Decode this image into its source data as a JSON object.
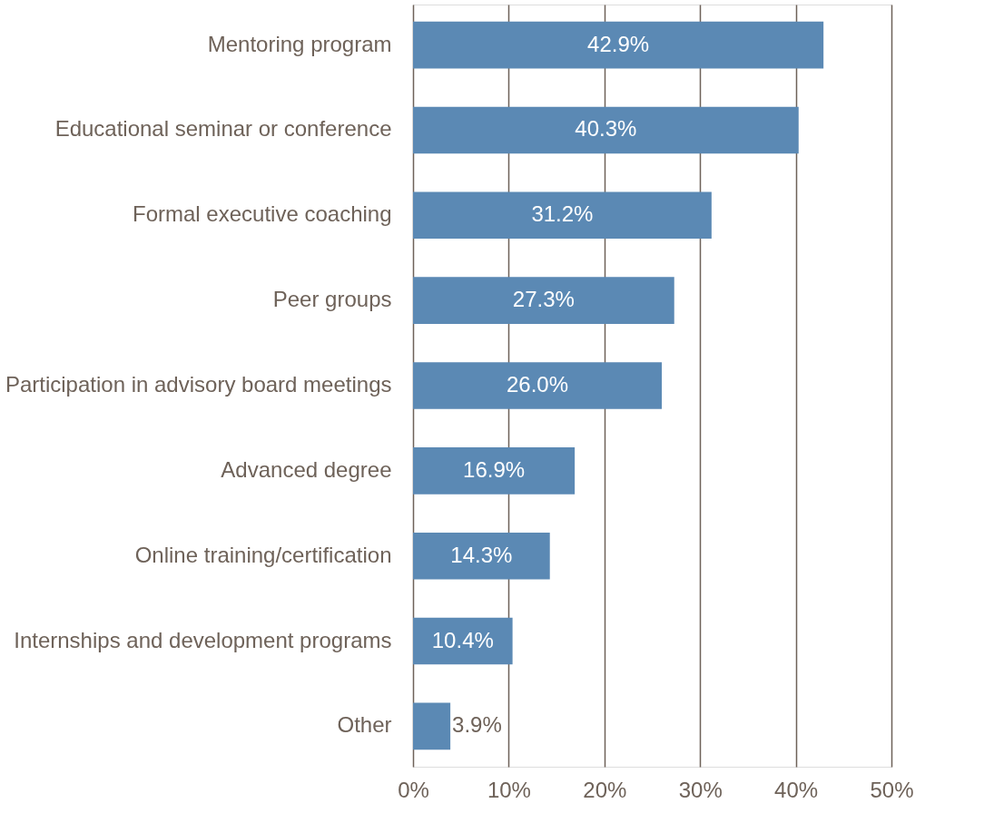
{
  "chart_data": {
    "type": "bar",
    "orientation": "horizontal",
    "categories": [
      "Mentoring program",
      "Educational seminar or conference",
      "Formal executive coaching",
      "Peer groups",
      "Participation in advisory board meetings",
      "Advanced degree",
      "Online training/certification",
      "Internships and development programs",
      "Other"
    ],
    "values": [
      42.9,
      40.3,
      31.2,
      27.3,
      26.0,
      16.9,
      14.3,
      10.4,
      3.9
    ],
    "value_labels": [
      "42.9%",
      "40.3%",
      "31.2%",
      "27.3%",
      "26.0%",
      "16.9%",
      "14.3%",
      "10.4%",
      "3.9%"
    ],
    "color": "#5b89b4",
    "xlim": [
      0,
      50
    ],
    "xticks": [
      {
        "value": 0,
        "label": "0%"
      },
      {
        "value": 10,
        "label": "10%"
      },
      {
        "value": 20,
        "label": "20%"
      },
      {
        "value": 30,
        "label": "30%"
      },
      {
        "value": 40,
        "label": "40%"
      },
      {
        "value": 50,
        "label": "50%"
      }
    ],
    "grid": "x"
  }
}
